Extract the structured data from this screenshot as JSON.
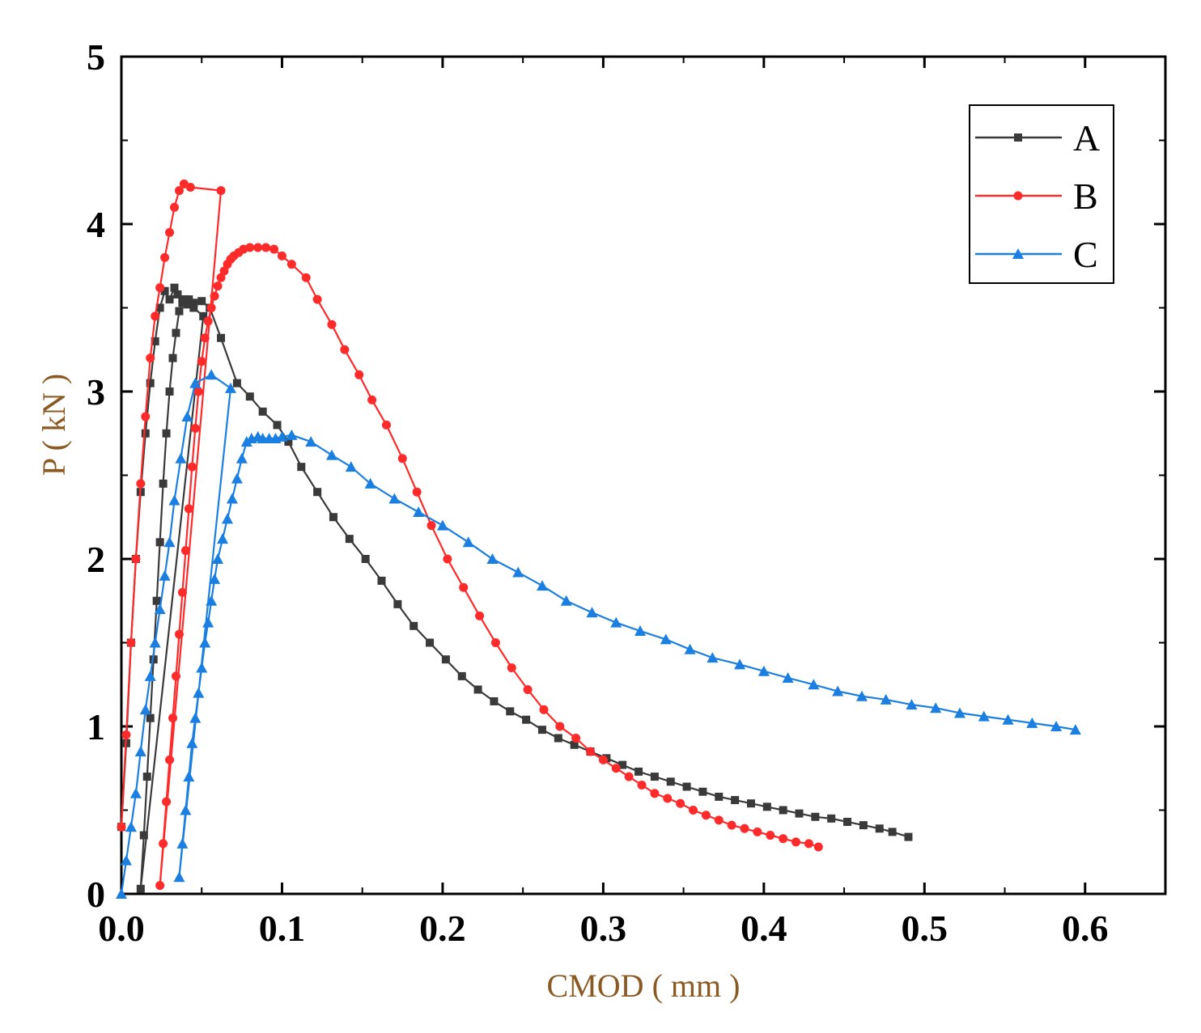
{
  "chart_data": {
    "type": "line",
    "title": "",
    "xlabel": "CMOD ( mm )",
    "ylabel": "P ( kN )",
    "xlim": [
      0,
      0.65
    ],
    "ylim": [
      0,
      5
    ],
    "x_ticks": [
      "0.0",
      "0.1",
      "0.2",
      "0.3",
      "0.4",
      "0.5",
      "0.6"
    ],
    "x_tick_values": [
      0,
      0.1,
      0.2,
      0.3,
      0.4,
      0.5,
      0.6
    ],
    "y_ticks": [
      "0",
      "1",
      "2",
      "3",
      "4",
      "5"
    ],
    "y_tick_values": [
      0,
      1,
      2,
      3,
      4,
      5
    ],
    "legend_position": "top-right",
    "series": [
      {
        "name": "A",
        "color": "#3a3a3a",
        "marker": "square",
        "x": [
          0.0,
          0.003,
          0.006,
          0.009,
          0.012,
          0.015,
          0.018,
          0.021,
          0.024,
          0.027,
          0.03,
          0.033,
          0.035,
          0.038,
          0.041,
          0.045,
          0.051,
          0.012,
          0.014,
          0.016,
          0.018,
          0.02,
          0.022,
          0.024,
          0.026,
          0.028,
          0.03,
          0.032,
          0.034,
          0.036,
          0.038,
          0.04,
          0.042,
          0.045,
          0.05,
          0.055,
          0.062,
          0.072,
          0.08,
          0.088,
          0.097,
          0.104,
          0.112,
          0.122,
          0.132,
          0.142,
          0.152,
          0.162,
          0.172,
          0.182,
          0.192,
          0.202,
          0.212,
          0.222,
          0.232,
          0.242,
          0.252,
          0.262,
          0.272,
          0.282,
          0.292,
          0.302,
          0.312,
          0.322,
          0.332,
          0.342,
          0.352,
          0.362,
          0.372,
          0.382,
          0.392,
          0.402,
          0.412,
          0.422,
          0.432,
          0.442,
          0.452,
          0.462,
          0.472,
          0.48,
          0.49
        ],
        "y": [
          0.4,
          0.9,
          1.5,
          2.0,
          2.4,
          2.75,
          3.05,
          3.3,
          3.5,
          3.6,
          3.55,
          3.62,
          3.58,
          3.55,
          3.52,
          3.5,
          3.45,
          0.03,
          0.35,
          0.7,
          1.05,
          1.4,
          1.75,
          2.1,
          2.45,
          2.75,
          3.0,
          3.2,
          3.35,
          3.48,
          3.53,
          3.55,
          3.55,
          3.53,
          3.54,
          3.5,
          3.32,
          3.05,
          2.97,
          2.88,
          2.8,
          2.7,
          2.55,
          2.4,
          2.25,
          2.12,
          2.0,
          1.87,
          1.73,
          1.6,
          1.5,
          1.4,
          1.3,
          1.22,
          1.15,
          1.09,
          1.04,
          0.98,
          0.93,
          0.89,
          0.85,
          0.81,
          0.77,
          0.73,
          0.7,
          0.67,
          0.64,
          0.61,
          0.58,
          0.56,
          0.54,
          0.52,
          0.5,
          0.48,
          0.46,
          0.45,
          0.43,
          0.41,
          0.39,
          0.37,
          0.34
        ]
      },
      {
        "name": "B",
        "color": "#ff2a2a",
        "marker": "circle",
        "x": [
          0.0,
          0.003,
          0.006,
          0.009,
          0.012,
          0.015,
          0.018,
          0.021,
          0.024,
          0.027,
          0.03,
          0.033,
          0.036,
          0.039,
          0.043,
          0.062,
          0.024,
          0.026,
          0.028,
          0.03,
          0.032,
          0.034,
          0.036,
          0.038,
          0.04,
          0.042,
          0.044,
          0.046,
          0.048,
          0.05,
          0.052,
          0.054,
          0.056,
          0.058,
          0.06,
          0.062,
          0.064,
          0.066,
          0.068,
          0.07,
          0.073,
          0.076,
          0.08,
          0.085,
          0.09,
          0.095,
          0.1,
          0.106,
          0.115,
          0.122,
          0.131,
          0.139,
          0.148,
          0.156,
          0.165,
          0.175,
          0.184,
          0.193,
          0.203,
          0.213,
          0.223,
          0.233,
          0.243,
          0.253,
          0.263,
          0.273,
          0.283,
          0.292,
          0.3,
          0.308,
          0.316,
          0.324,
          0.332,
          0.34,
          0.348,
          0.356,
          0.364,
          0.372,
          0.38,
          0.388,
          0.396,
          0.404,
          0.412,
          0.42,
          0.428,
          0.434
        ],
        "y": [
          0.4,
          0.95,
          1.5,
          2.0,
          2.45,
          2.85,
          3.2,
          3.45,
          3.62,
          3.8,
          3.95,
          4.1,
          4.2,
          4.24,
          4.22,
          4.2,
          0.05,
          0.3,
          0.55,
          0.8,
          1.05,
          1.3,
          1.55,
          1.8,
          2.05,
          2.3,
          2.55,
          2.78,
          3.0,
          3.18,
          3.32,
          3.42,
          3.5,
          3.57,
          3.63,
          3.68,
          3.72,
          3.76,
          3.79,
          3.81,
          3.83,
          3.85,
          3.86,
          3.86,
          3.86,
          3.85,
          3.81,
          3.76,
          3.68,
          3.55,
          3.4,
          3.25,
          3.1,
          2.95,
          2.8,
          2.6,
          2.4,
          2.2,
          2.0,
          1.83,
          1.66,
          1.5,
          1.35,
          1.22,
          1.1,
          1.0,
          0.93,
          0.85,
          0.8,
          0.75,
          0.7,
          0.65,
          0.6,
          0.57,
          0.54,
          0.5,
          0.47,
          0.44,
          0.41,
          0.39,
          0.37,
          0.35,
          0.33,
          0.31,
          0.3,
          0.28
        ]
      },
      {
        "name": "C",
        "color": "#1a7fe0",
        "marker": "triangle",
        "x": [
          0.0,
          0.003,
          0.006,
          0.009,
          0.012,
          0.015,
          0.018,
          0.021,
          0.024,
          0.027,
          0.03,
          0.033,
          0.037,
          0.041,
          0.046,
          0.056,
          0.068,
          0.036,
          0.038,
          0.04,
          0.042,
          0.044,
          0.046,
          0.048,
          0.05,
          0.052,
          0.054,
          0.056,
          0.058,
          0.06,
          0.063,
          0.066,
          0.069,
          0.072,
          0.075,
          0.078,
          0.081,
          0.085,
          0.088,
          0.092,
          0.096,
          0.1,
          0.106,
          0.118,
          0.131,
          0.143,
          0.155,
          0.17,
          0.185,
          0.2,
          0.216,
          0.231,
          0.247,
          0.262,
          0.277,
          0.293,
          0.308,
          0.323,
          0.339,
          0.354,
          0.368,
          0.385,
          0.4,
          0.415,
          0.431,
          0.446,
          0.461,
          0.476,
          0.492,
          0.507,
          0.522,
          0.537,
          0.552,
          0.567,
          0.582,
          0.594
        ],
        "y": [
          0.0,
          0.2,
          0.4,
          0.6,
          0.85,
          1.1,
          1.3,
          1.5,
          1.7,
          1.9,
          2.1,
          2.35,
          2.6,
          2.85,
          3.05,
          3.1,
          3.02,
          0.1,
          0.3,
          0.5,
          0.7,
          0.9,
          1.05,
          1.2,
          1.35,
          1.5,
          1.62,
          1.75,
          1.88,
          2.0,
          2.12,
          2.24,
          2.36,
          2.48,
          2.6,
          2.7,
          2.72,
          2.73,
          2.72,
          2.72,
          2.72,
          2.73,
          2.74,
          2.7,
          2.62,
          2.55,
          2.45,
          2.36,
          2.28,
          2.2,
          2.1,
          2.0,
          1.92,
          1.84,
          1.75,
          1.68,
          1.62,
          1.57,
          1.52,
          1.46,
          1.41,
          1.37,
          1.33,
          1.29,
          1.25,
          1.21,
          1.18,
          1.16,
          1.13,
          1.11,
          1.08,
          1.06,
          1.04,
          1.02,
          1.0,
          0.98
        ]
      }
    ]
  }
}
